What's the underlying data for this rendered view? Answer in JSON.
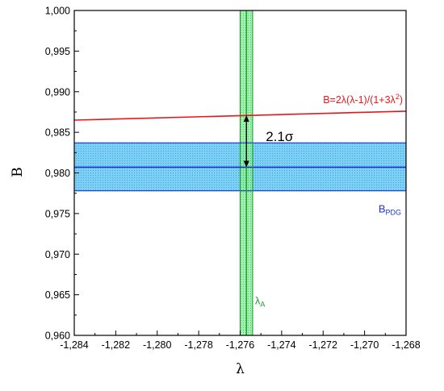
{
  "chart_data": {
    "type": "line",
    "title": "",
    "xlabel": "λ",
    "ylabel": "B",
    "xlim": [
      -1.284,
      -1.268
    ],
    "ylim": [
      0.96,
      1.0
    ],
    "x_ticks": [
      -1.284,
      -1.282,
      -1.28,
      -1.278,
      -1.276,
      -1.274,
      -1.272,
      -1.27,
      -1.268
    ],
    "x_tick_labels": [
      "-1,284",
      "-1,282",
      "-1,280",
      "-1,278",
      "-1,276",
      "-1,274",
      "-1,272",
      "-1,270",
      "-1,268"
    ],
    "y_ticks": [
      0.96,
      0.965,
      0.97,
      0.975,
      0.98,
      0.985,
      0.99,
      0.995,
      1.0
    ],
    "y_tick_labels": [
      "0,960",
      "0,965",
      "0,970",
      "0,975",
      "0,980",
      "0,985",
      "0,990",
      "0,995",
      "1,000"
    ],
    "grid": false,
    "series": [
      {
        "name": "B=2λ(λ-1)/(1+3λ²)",
        "color": "#e8161b",
        "x": [
          -1.284,
          -1.268
        ],
        "y": [
          0.9865,
          0.9876
        ]
      }
    ],
    "bands": [
      {
        "name": "B_PDG",
        "label_main": "B",
        "label_sub": "PDG",
        "orientation": "horizontal",
        "center": 0.9807,
        "low": 0.9778,
        "high": 0.9837,
        "edge_color": "#1f32c8",
        "fill_color": "#5bc0ef"
      },
      {
        "name": "λ_A",
        "label_main": "λ",
        "label_sub": "A",
        "orientation": "vertical",
        "center": -1.2757,
        "low": -1.276,
        "high": -1.2754,
        "edge_color": "#1f9a2f",
        "fill_color": "#7fe08a"
      }
    ],
    "annotations": {
      "tension_label": "2.1σ",
      "arrow_x": -1.2757,
      "arrow_y_top": 0.9871,
      "arrow_y_bottom": 0.9807
    }
  }
}
